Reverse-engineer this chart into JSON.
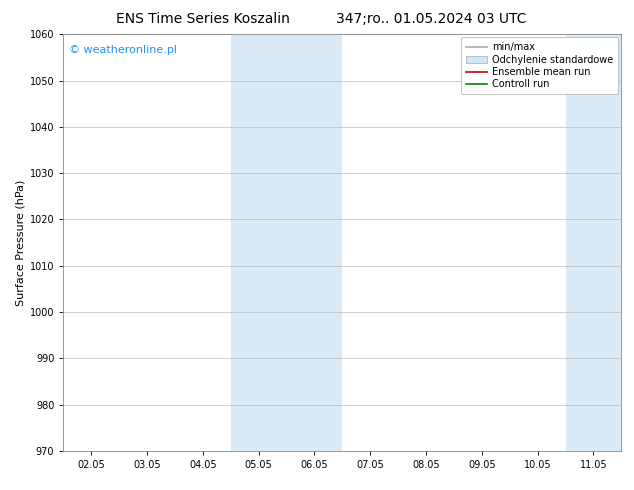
{
  "title_left": "ENS Time Series Koszalin",
  "title_right": "347;ro.. 01.05.2024 03 UTC",
  "ylabel": "Surface Pressure (hPa)",
  "ylim": [
    970,
    1060
  ],
  "yticks": [
    970,
    980,
    990,
    1000,
    1010,
    1020,
    1030,
    1040,
    1050,
    1060
  ],
  "x_tick_labels": [
    "02.05",
    "03.05",
    "04.05",
    "05.05",
    "06.05",
    "07.05",
    "08.05",
    "09.05",
    "10.05",
    "11.05"
  ],
  "x_tick_positions": [
    0,
    1,
    2,
    3,
    4,
    5,
    6,
    7,
    8,
    9
  ],
  "xlim": [
    -0.5,
    9.5
  ],
  "shaded_regions": [
    {
      "x_start": 2.5,
      "x_end": 4.5,
      "color": "#daeaf7"
    },
    {
      "x_start": 8.5,
      "x_end": 9.5,
      "color": "#daeaf7"
    }
  ],
  "watermark": "© weatheronline.pl",
  "watermark_color": "#1e90ff",
  "legend_items": [
    {
      "label": "min/max",
      "type": "line",
      "color": "#aaaaaa",
      "linewidth": 1.2
    },
    {
      "label": "Odchylenie standardowe",
      "type": "patch",
      "color": "#d0e8f5"
    },
    {
      "label": "Ensemble mean run",
      "type": "line",
      "color": "#cc0000",
      "linewidth": 1.2
    },
    {
      "label": "Controll run",
      "type": "line",
      "color": "#008800",
      "linewidth": 1.2
    }
  ],
  "background_color": "#ffffff",
  "plot_bg_color": "#ffffff",
  "grid_color": "#bbbbbb",
  "title_fontsize": 10,
  "tick_fontsize": 7,
  "ylabel_fontsize": 8,
  "legend_fontsize": 7,
  "watermark_fontsize": 8
}
